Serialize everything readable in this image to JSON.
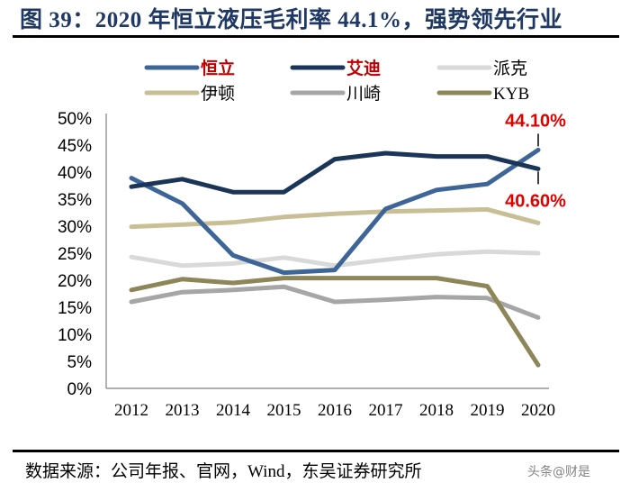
{
  "title": "图 39：2020 年恒立液压毛利率 44.1%，强势领先行业",
  "source": "数据来源：公司年报、官网，Wind，东吴证券研究所",
  "watermark": "头条@财是",
  "chart_data": {
    "type": "line",
    "title": "",
    "xlabel": "",
    "ylabel": "",
    "ylim": [
      0,
      50
    ],
    "yticks": [
      "0%",
      "5%",
      "10%",
      "15%",
      "20%",
      "25%",
      "30%",
      "35%",
      "40%",
      "45%",
      "50%"
    ],
    "categories": [
      "2012",
      "2013",
      "2014",
      "2015",
      "2016",
      "2017",
      "2018",
      "2019",
      "2020"
    ],
    "grid": false,
    "legend_placement": "top",
    "series": [
      {
        "name": "恒立",
        "color": "#3E6597",
        "legend_color": "#C00000",
        "legend_bold": true,
        "values": [
          38.9,
          34.2,
          24.6,
          21.4,
          21.9,
          33.2,
          36.7,
          37.8,
          44.1
        ]
      },
      {
        "name": "艾迪",
        "color": "#1B3558",
        "legend_color": "#C00000",
        "legend_bold": true,
        "values": [
          37.3,
          38.7,
          36.3,
          36.3,
          42.4,
          43.5,
          42.9,
          42.9,
          40.6
        ]
      },
      {
        "name": "派克",
        "color": "#D9D9D9",
        "legend_color": "#000000",
        "legend_bold": false,
        "values": [
          24.3,
          22.7,
          23.1,
          24.2,
          22.7,
          23.8,
          24.8,
          25.3,
          25.0
        ]
      },
      {
        "name": "伊顿",
        "color": "#C9BF97",
        "legend_color": "#000000",
        "legend_bold": false,
        "values": [
          29.9,
          30.3,
          30.7,
          31.7,
          32.3,
          32.7,
          32.9,
          33.1,
          30.6
        ]
      },
      {
        "name": "川崎",
        "color": "#A6A6A6",
        "legend_color": "#000000",
        "legend_bold": false,
        "values": [
          16.0,
          17.8,
          18.2,
          18.8,
          16.0,
          16.4,
          16.9,
          16.7,
          13.1
        ]
      },
      {
        "name": "KYB",
        "color": "#8E8659",
        "legend_color": "#000000",
        "legend_bold": false,
        "values": [
          18.2,
          20.2,
          19.5,
          20.4,
          20.4,
          20.4,
          20.4,
          18.9,
          4.3
        ]
      }
    ],
    "annotations": [
      {
        "text": "44.10%",
        "series": "恒立",
        "category": "2020",
        "value": 44.1,
        "position": "above",
        "color": "#E00000"
      },
      {
        "text": "40.60%",
        "series": "艾迪",
        "category": "2020",
        "value": 40.6,
        "position": "below",
        "color": "#E00000"
      }
    ]
  }
}
